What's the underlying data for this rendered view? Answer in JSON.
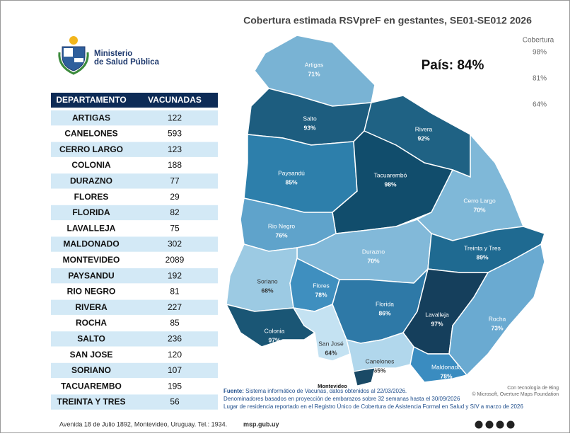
{
  "header": {
    "ministry_line1": "Ministerio",
    "ministry_line2": "de Salud Pública"
  },
  "title": "Cobertura estimada RSVpreF en gestantes, SE01-SE012 2026",
  "legend": {
    "title": "Cobertura",
    "labels": [
      "98%",
      "81%",
      "64%"
    ]
  },
  "country": "País: 84%",
  "table": {
    "headers": [
      "DEPARTAMENTO",
      "VACUNADAS"
    ],
    "rows": [
      [
        "ARTIGAS",
        122
      ],
      [
        "CANELONES",
        593
      ],
      [
        "CERRO LARGO",
        123
      ],
      [
        "COLONIA",
        188
      ],
      [
        "DURAZNO",
        77
      ],
      [
        "FLORES",
        29
      ],
      [
        "FLORIDA",
        82
      ],
      [
        "LAVALLEJA",
        75
      ],
      [
        "MALDONADO",
        302
      ],
      [
        "MONTEVIDEO",
        2089
      ],
      [
        "PAYSANDU",
        192
      ],
      [
        "RIO NEGRO",
        81
      ],
      [
        "RIVERA",
        227
      ],
      [
        "ROCHA",
        85
      ],
      [
        "SALTO",
        236
      ],
      [
        "SAN JOSE",
        120
      ],
      [
        "SORIANO",
        107
      ],
      [
        "TACUAREMBO",
        195
      ],
      [
        "TREINTA Y TRES",
        56
      ]
    ]
  },
  "map": {
    "regions": [
      {
        "name": "Artigas",
        "coverage": "71%",
        "color": "#79b3d4"
      },
      {
        "name": "Salto",
        "coverage": "93%",
        "color": "#1d5d7f"
      },
      {
        "name": "Rivera",
        "coverage": "92%",
        "color": "#1f6284"
      },
      {
        "name": "Paysandú",
        "coverage": "85%",
        "color": "#2d7fab"
      },
      {
        "name": "Tacuarembó",
        "coverage": "98%",
        "color": "#114d6c"
      },
      {
        "name": "Cerro Largo",
        "coverage": "70%",
        "color": "#7fb8d8"
      },
      {
        "name": "Rio Negro",
        "coverage": "76%",
        "color": "#5fa3cb"
      },
      {
        "name": "Durazno",
        "coverage": "70%",
        "color": "#82b9d9"
      },
      {
        "name": "Treinta y Tres",
        "coverage": "89%",
        "color": "#1f6a91"
      },
      {
        "name": "Soriano",
        "coverage": "68%",
        "color": "#9ccae3"
      },
      {
        "name": "Flores",
        "coverage": "78%",
        "color": "#3f8fbf"
      },
      {
        "name": "Florida",
        "coverage": "86%",
        "color": "#2e79a7"
      },
      {
        "name": "Lavalleja",
        "coverage": "97%",
        "color": "#153f5c"
      },
      {
        "name": "Rocha",
        "coverage": "73%",
        "color": "#6aaad1"
      },
      {
        "name": "Colonia",
        "coverage": "97%",
        "color": "#1a5675"
      },
      {
        "name": "San José",
        "coverage": "64%",
        "color": "#c4e2f2"
      },
      {
        "name": "Canelones",
        "coverage": "65%",
        "color": "#b1d7ec"
      },
      {
        "name": "Maldonado",
        "coverage": "78%",
        "color": "#3a8cc0"
      }
    ],
    "montevideo": "Montevideo"
  },
  "notes": {
    "source_label": "Fuente:",
    "source_text": " Sistema informático de Vacunas, datos obtenidos al 22/03/2026.",
    "line2": "Denominadores basados en proyección de embarazos sobre 32 semanas hasta el  30/09/2026",
    "line3": "Lugar de residencia reportado en el Registro Único de Cobertura de Asistencia Formal en Salud y SIV a marzo de 2026"
  },
  "credits": {
    "bing": "Con tecnología de Bing",
    "copyright": "© Microsoft, Overture Maps Foundation"
  },
  "footer": {
    "address": "Avenida 18 de Julio 1892, Montevideo, Uruguay. Tel.: 1934.",
    "site": "msp.gub.uy"
  }
}
